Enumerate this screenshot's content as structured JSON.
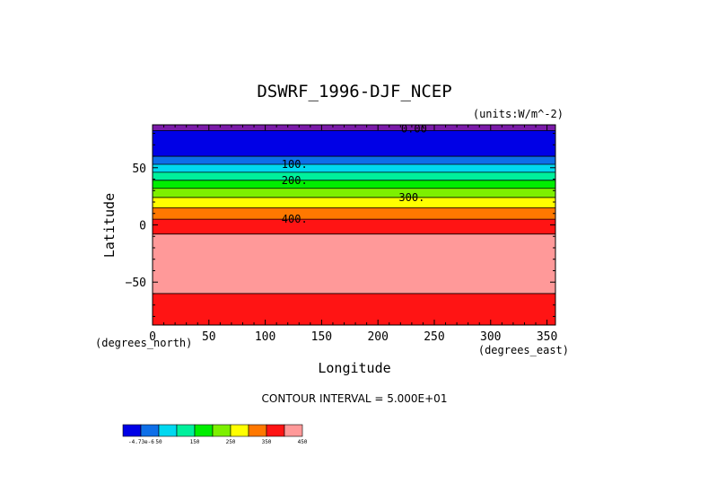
{
  "chart_data": {
    "type": "heatmap",
    "title": "DSWRF_1996-DJF_NCEP",
    "units_label": "(units:W/m^-2)",
    "xlabel": "Longitude",
    "ylabel": "Latitude",
    "x_unit_label": "(degrees_east)",
    "y_unit_label": "(degrees_north)",
    "xlim": [
      0,
      357.5
    ],
    "ylim": [
      -87.5,
      87.5
    ],
    "x_ticks": [
      0,
      50,
      100,
      150,
      200,
      250,
      300,
      350
    ],
    "y_ticks": [
      -50,
      0,
      50
    ],
    "y_tick_labels": [
      "−50",
      "0",
      "50"
    ],
    "contour_interval_text": "CONTOUR INTERVAL = 5.000E+01",
    "bands": [
      {
        "lat0": 82.5,
        "lat1": 87.5,
        "color": "#7a1aa8"
      },
      {
        "lat0": 60,
        "lat1": 82.5,
        "color": "#0000e6"
      },
      {
        "lat0": 53,
        "lat1": 60,
        "color": "#0e6fe8"
      },
      {
        "lat0": 46,
        "lat1": 53,
        "color": "#00d8f0"
      },
      {
        "lat0": 39,
        "lat1": 46,
        "color": "#00f09c"
      },
      {
        "lat0": 32,
        "lat1": 39,
        "color": "#00ee00"
      },
      {
        "lat0": 24,
        "lat1": 32,
        "color": "#7df000"
      },
      {
        "lat0": 15,
        "lat1": 24,
        "color": "#ffff00"
      },
      {
        "lat0": 5,
        "lat1": 15,
        "color": "#ff7800"
      },
      {
        "lat0": -8,
        "lat1": 5,
        "color": "#ff1414"
      },
      {
        "lat0": -60,
        "lat1": -8,
        "color": "#ff9999"
      },
      {
        "lat0": -87.5,
        "lat1": -60,
        "color": "#ff1414"
      }
    ],
    "contour_lats": [
      82.5,
      60,
      53,
      46,
      39,
      32,
      24,
      15,
      5,
      -8,
      -60
    ],
    "contour_labels": [
      {
        "text": "0.00",
        "lon": 232,
        "lat": 84
      },
      {
        "text": "100.",
        "lon": 126,
        "lat": 53
      },
      {
        "text": "200.",
        "lon": 126,
        "lat": 39
      },
      {
        "text": "300.",
        "lon": 230,
        "lat": 24
      },
      {
        "text": "400.",
        "lon": 126,
        "lat": 5
      }
    ],
    "colorbar": {
      "colors": [
        "#0000e6",
        "#0e6fe8",
        "#00d8f0",
        "#00f09c",
        "#00ee00",
        "#7df000",
        "#ffff00",
        "#ff7800",
        "#ff1414",
        "#ff9999"
      ],
      "labels": [
        "-4.73e-6",
        "50",
        "150",
        "250",
        "350",
        "450"
      ],
      "label_after_box": [
        0,
        1,
        3,
        5,
        7,
        9
      ]
    }
  }
}
